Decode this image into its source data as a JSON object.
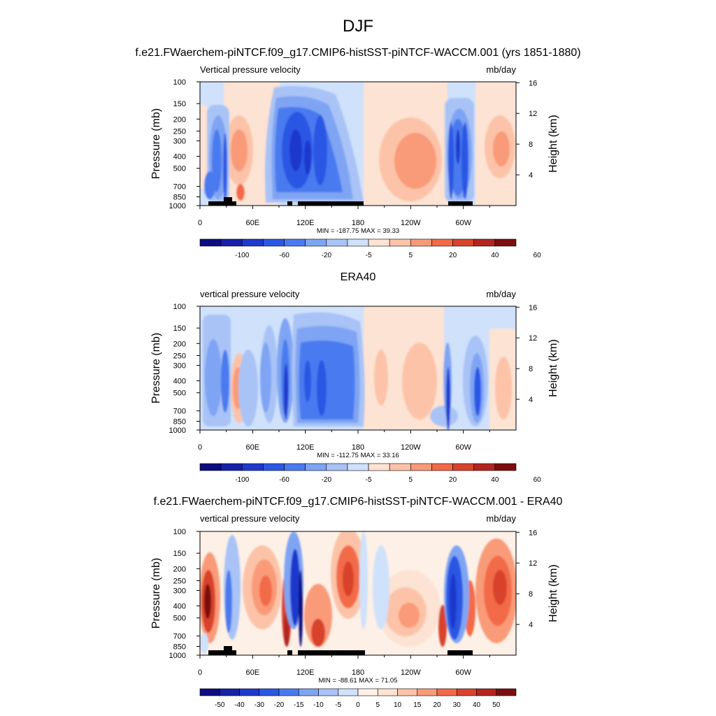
{
  "figure": {
    "title": "DJF",
    "colors": {
      "cb_main": [
        "#0c0d80",
        "#1622a8",
        "#1f39cc",
        "#2c57e4",
        "#4a7aef",
        "#7fa4f3",
        "#a9c3f6",
        "#cfe1fb",
        "#fde3d3",
        "#fcc3a8",
        "#f99a78",
        "#f26a47",
        "#d8432c",
        "#b32520",
        "#7d0e0f"
      ],
      "cb_diff": [
        "#0c0d80",
        "#1622a8",
        "#1f39cc",
        "#2c57e4",
        "#4a7aef",
        "#7fa4f3",
        "#a9c3f6",
        "#cfe1fb",
        "#fdf0e6",
        "#fde3d3",
        "#fcc3a8",
        "#f99a78",
        "#f26a47",
        "#d8432c",
        "#b32520",
        "#7d0e0f"
      ]
    }
  },
  "chart_data": [
    {
      "type": "heatmap",
      "title": "f.e21.FWaerchem-piNTCF.f09_g17.CMIP6-histSST-piNTCF-WACCM.001 (yrs 1851-1880)",
      "left_string": "Vertical pressure velocity",
      "right_string": "mb/day",
      "ylabel": "Pressure (mb)",
      "ylabel_right": "Height (km)",
      "x_ticks": [
        "0",
        "60E",
        "120E",
        "180",
        "120W",
        "60W"
      ],
      "x_tick_values": [
        0,
        60,
        120,
        180,
        240,
        300
      ],
      "xlim": [
        0,
        360
      ],
      "y_ticks": [
        "100",
        "150",
        "200",
        "250",
        "300",
        "400",
        "500",
        "700",
        "850",
        "1000"
      ],
      "y_tick_values": [
        100,
        150,
        200,
        250,
        300,
        400,
        500,
        700,
        850,
        1000
      ],
      "ylim": [
        1000,
        100
      ],
      "y_scale": "log",
      "right_ticks": [
        "4",
        "8",
        "12",
        "16"
      ],
      "right_tick_values": [
        4,
        8,
        12,
        16
      ],
      "stats": "MIN = -187.75  MAX =  39.33",
      "min": -187.75,
      "max": 39.33,
      "colorbar_labels": [
        "-100",
        "-60",
        "-20",
        "-5",
        "5",
        "20",
        "40",
        "60"
      ]
    },
    {
      "type": "heatmap",
      "title": "ERA40",
      "left_string": "vertical pressure velocity",
      "right_string": "mb/day",
      "ylabel": "Pressure (mb)",
      "ylabel_right": "Height (km)",
      "x_ticks": [
        "0",
        "60E",
        "120E",
        "180",
        "120W",
        "60W"
      ],
      "x_tick_values": [
        0,
        60,
        120,
        180,
        240,
        300
      ],
      "xlim": [
        0,
        360
      ],
      "y_ticks": [
        "100",
        "150",
        "200",
        "250",
        "300",
        "400",
        "500",
        "700",
        "850",
        "1000"
      ],
      "y_tick_values": [
        100,
        150,
        200,
        250,
        300,
        400,
        500,
        700,
        850,
        1000
      ],
      "ylim": [
        1000,
        100
      ],
      "y_scale": "log",
      "right_ticks": [
        "4",
        "8",
        "12",
        "16"
      ],
      "right_tick_values": [
        4,
        8,
        12,
        16
      ],
      "stats": "MIN = -112.75  MAX =  33.16",
      "min": -112.75,
      "max": 33.16,
      "colorbar_labels": [
        "-100",
        "-60",
        "-20",
        "-5",
        "5",
        "20",
        "40",
        "60"
      ]
    },
    {
      "type": "heatmap",
      "title": "f.e21.FWaerchem-piNTCF.f09_g17.CMIP6-histSST-piNTCF-WACCM.001 - ERA40",
      "left_string": "vertical pressure velocity",
      "right_string": "mb/day",
      "ylabel": "Pressure (mb)",
      "ylabel_right": "Height (km)",
      "x_ticks": [
        "0",
        "60E",
        "120E",
        "180",
        "120W",
        "60W"
      ],
      "x_tick_values": [
        0,
        60,
        120,
        180,
        240,
        300
      ],
      "xlim": [
        0,
        360
      ],
      "y_ticks": [
        "100",
        "150",
        "200",
        "250",
        "300",
        "400",
        "500",
        "700",
        "850",
        "1000"
      ],
      "y_tick_values": [
        100,
        150,
        200,
        250,
        300,
        400,
        500,
        700,
        850,
        1000
      ],
      "ylim": [
        1000,
        100
      ],
      "y_scale": "log",
      "right_ticks": [
        "4",
        "8",
        "12",
        "16"
      ],
      "right_tick_values": [
        4,
        8,
        12,
        16
      ],
      "stats": "MIN = -88.61  MAX =  71.05",
      "min": -88.61,
      "max": 71.05,
      "colorbar_labels": [
        "-50",
        "-40",
        "-30",
        "-20",
        "-15",
        "-10",
        "-5",
        "0",
        "5",
        "10",
        "15",
        "20",
        "30",
        "40",
        "50"
      ]
    }
  ]
}
